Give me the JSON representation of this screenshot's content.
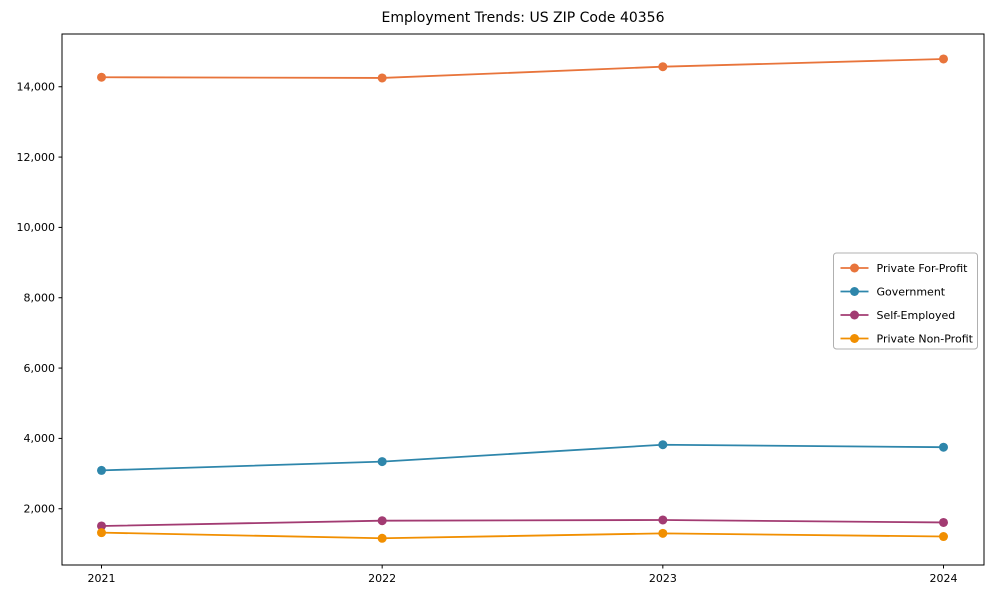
{
  "title": "Employment Trends: US ZIP Code 40356",
  "chart_data": {
    "type": "line",
    "title": "Employment Trends: US ZIP Code 40356",
    "categories": [
      "2021",
      "2022",
      "2023",
      "2024"
    ],
    "series": [
      {
        "name": "Private For-Profit",
        "color": "#E8743B",
        "values": [
          14270,
          14250,
          14570,
          14790
        ]
      },
      {
        "name": "Government",
        "color": "#2E86AB",
        "values": [
          3090,
          3340,
          3820,
          3750
        ]
      },
      {
        "name": "Self-Employed",
        "color": "#A23B72",
        "values": [
          1510,
          1660,
          1680,
          1610
        ]
      },
      {
        "name": "Private Non-Profit",
        "color": "#F18F01",
        "values": [
          1320,
          1160,
          1300,
          1210
        ]
      }
    ],
    "xlabel": "",
    "ylabel": "",
    "ylim": [
      400,
      15500
    ],
    "yticks": [
      2000,
      4000,
      6000,
      8000,
      10000,
      12000,
      14000
    ],
    "ytick_labels": [
      "2,000",
      "4,000",
      "6,000",
      "8,000",
      "10,000",
      "12,000",
      "14,000"
    ],
    "grid": false,
    "legend_position": "center right",
    "marker": "circle",
    "axis_color": "#000000",
    "legend_border_color": "#b0b0b0",
    "background_color": "#ffffff"
  }
}
